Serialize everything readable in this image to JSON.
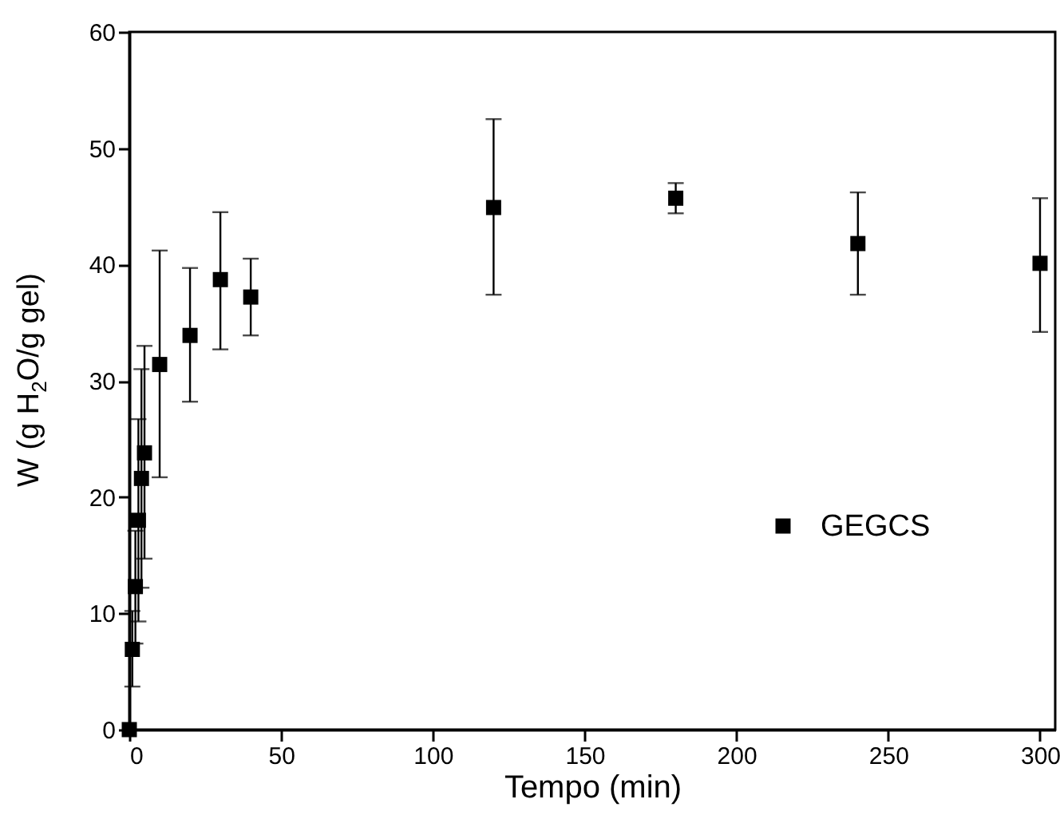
{
  "chart_data": {
    "type": "scatter",
    "xlabel": "Tempo (min)",
    "ylabel": "W (g H$_{2}$O/g gel)",
    "x": [
      0,
      1,
      2,
      3,
      4,
      5,
      10,
      20,
      30,
      40,
      120,
      180,
      240,
      300
    ],
    "series": [
      {
        "name": "GEGCS",
        "color": "#000000",
        "values": [
          0,
          6.9,
          12.3,
          18.0,
          21.6,
          23.8,
          31.4,
          33.9,
          38.7,
          37.2,
          44.9,
          45.7,
          41.8,
          40.1
        ],
        "errors": [
          null,
          [
            3.7,
            10.2
          ],
          [
            7.4,
            17.1
          ],
          [
            9.3,
            26.7
          ],
          [
            12.2,
            31.0
          ],
          [
            14.7,
            33.0
          ],
          [
            21.7,
            41.2
          ],
          [
            28.2,
            39.7
          ],
          [
            32.7,
            44.5
          ],
          [
            33.9,
            40.5
          ],
          [
            37.4,
            52.5
          ],
          [
            44.4,
            47.0
          ],
          [
            37.4,
            46.2
          ],
          [
            34.2,
            45.7
          ]
        ]
      }
    ],
    "xlim": [
      0,
      305
    ],
    "ylim": [
      0,
      60
    ],
    "xticks": [
      0,
      50,
      100,
      150,
      200,
      250,
      300
    ],
    "yticks": [
      0,
      10,
      20,
      30,
      40,
      50,
      60
    ],
    "marker": "square",
    "legend": "right",
    "grid": false
  }
}
